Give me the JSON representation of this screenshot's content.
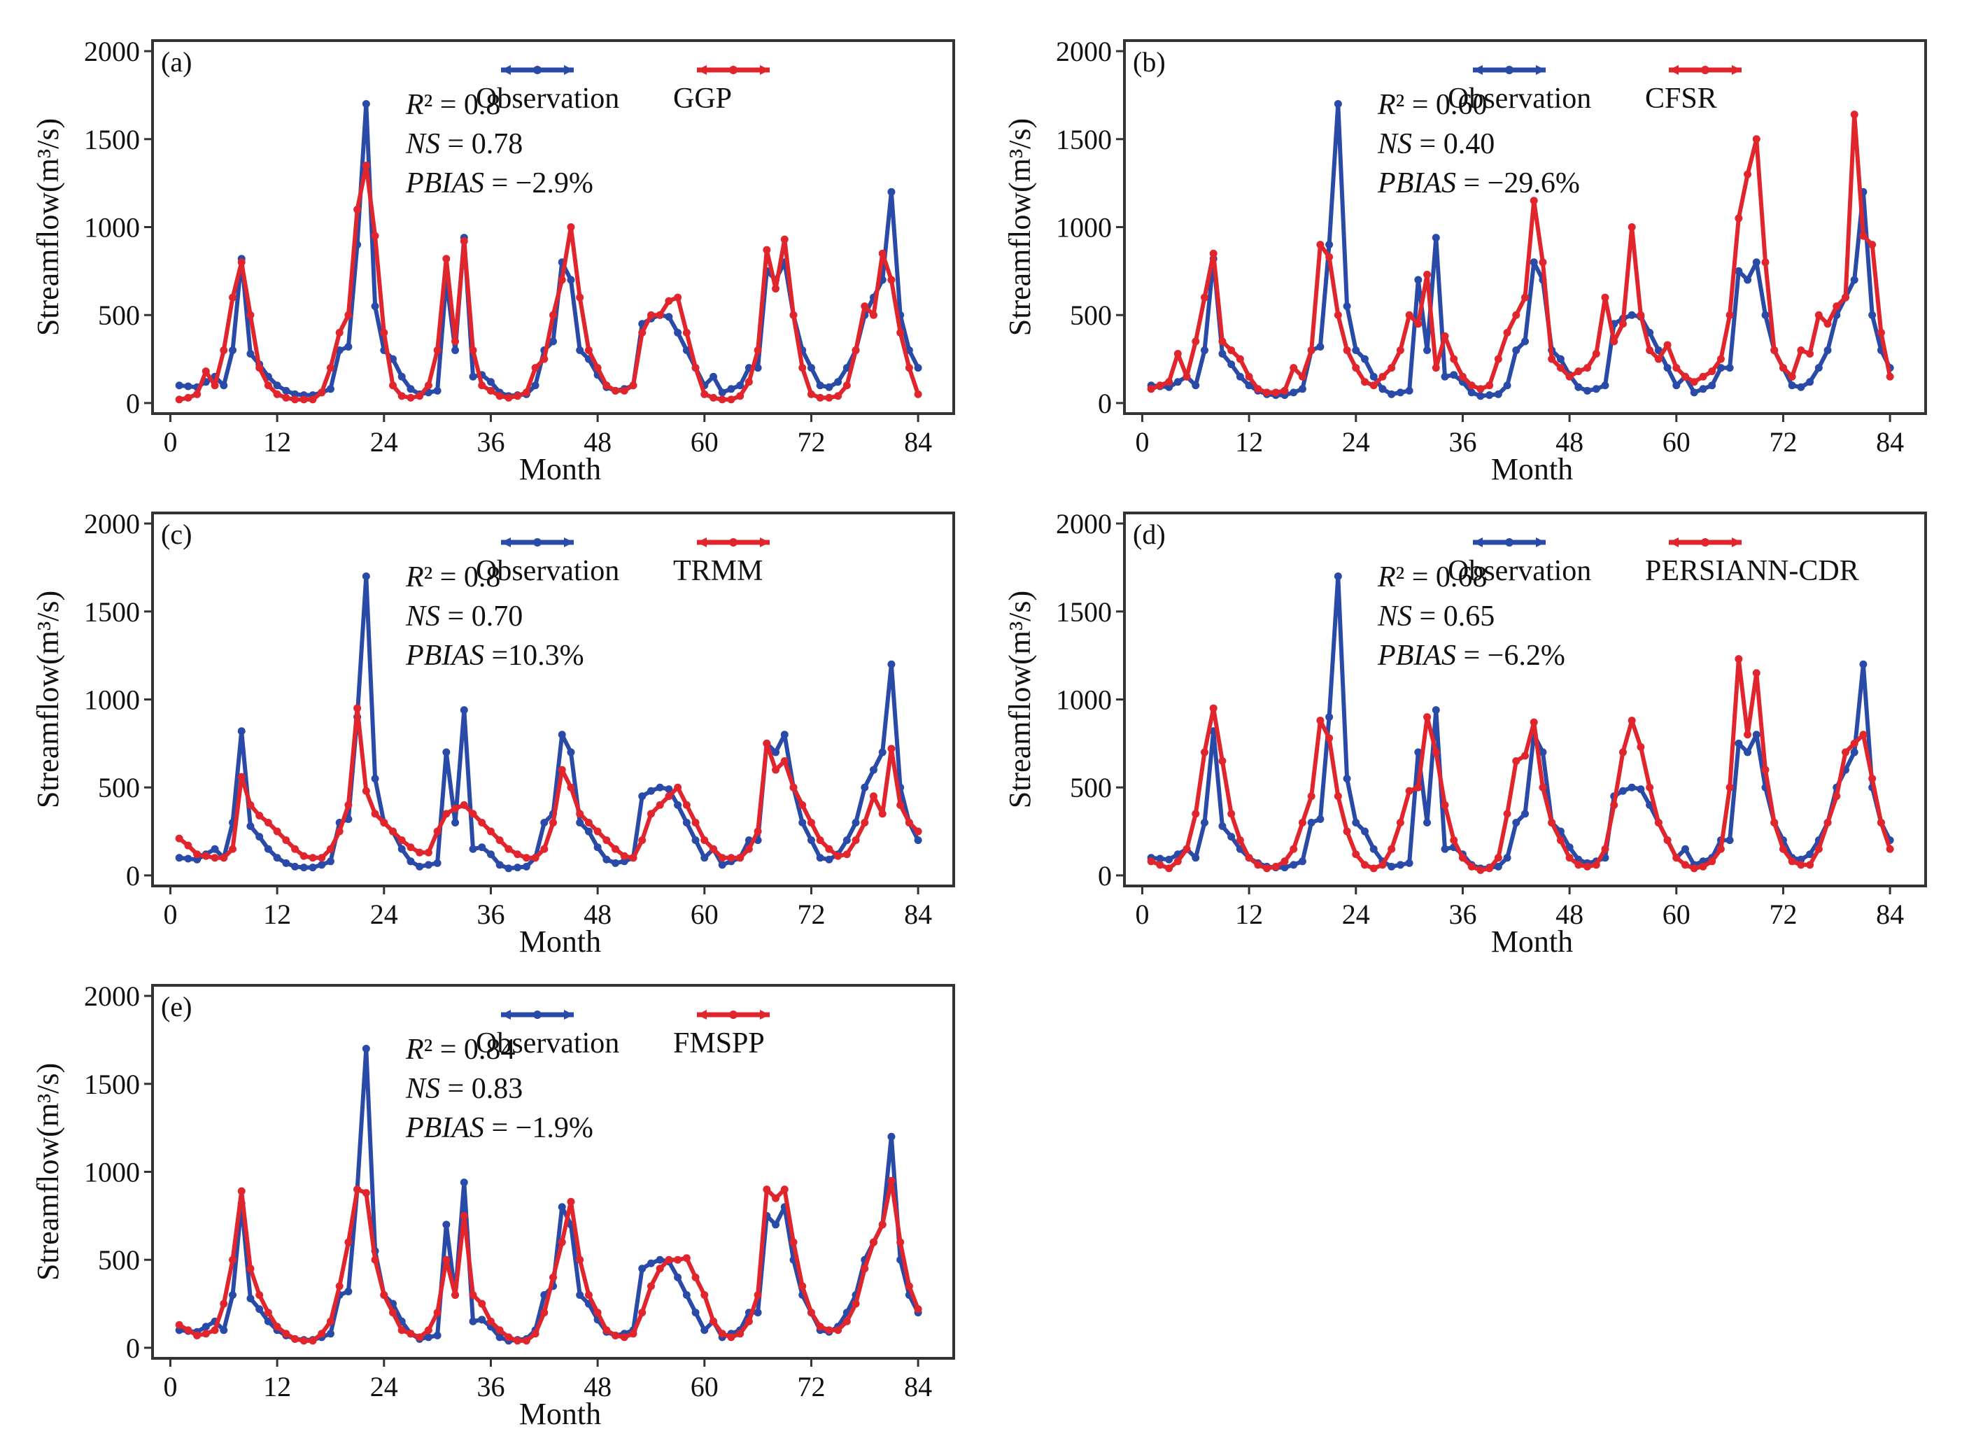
{
  "figure": {
    "x_axis_label": "Month",
    "y_axis_label": "Streamflow(m³/s)",
    "x_ticks": [
      0,
      12,
      24,
      36,
      48,
      60,
      72,
      84
    ],
    "y_ticks": [
      0,
      500,
      1000,
      1500,
      2000
    ],
    "colors": {
      "observation": "#2a4aa8",
      "model": "#e0262c"
    }
  },
  "chart_data": [
    {
      "type": "line",
      "panel_label": "(a)",
      "title": "",
      "xlabel": "Month",
      "ylabel": "Streamflow(m³/s)",
      "xlim": [
        -2,
        88
      ],
      "ylim": [
        -60,
        2060
      ],
      "stats": {
        "r2": "R² = 0.8",
        "ns": "NS = 0.78",
        "pbias": "PBIAS = −2.9%"
      },
      "legend": [
        "Observation",
        "GGP"
      ],
      "series": [
        {
          "name": "Observation",
          "color": "#2a4aa8",
          "values": [
            100,
            95,
            90,
            120,
            150,
            100,
            300,
            820,
            280,
            220,
            150,
            100,
            70,
            50,
            45,
            45,
            60,
            80,
            300,
            320,
            900,
            1700,
            550,
            300,
            250,
            150,
            80,
            50,
            60,
            70,
            700,
            300,
            940,
            150,
            160,
            120,
            60,
            40,
            45,
            50,
            100,
            300,
            350,
            800,
            700,
            300,
            250,
            160,
            90,
            70,
            80,
            100,
            450,
            480,
            500,
            490,
            400,
            300,
            200,
            100,
            150,
            60,
            80,
            100,
            200,
            200,
            750,
            700,
            800,
            500,
            300,
            200,
            100,
            90,
            120,
            200,
            300,
            500,
            600,
            700,
            1200,
            500,
            300,
            200
          ]
        },
        {
          "name": "GGP",
          "color": "#e0262c",
          "values": [
            20,
            30,
            50,
            180,
            100,
            300,
            600,
            800,
            500,
            200,
            100,
            50,
            30,
            20,
            20,
            20,
            60,
            200,
            400,
            500,
            1100,
            1350,
            950,
            400,
            100,
            40,
            30,
            40,
            100,
            300,
            820,
            350,
            920,
            300,
            100,
            70,
            40,
            30,
            40,
            60,
            200,
            250,
            500,
            700,
            1000,
            600,
            300,
            200,
            100,
            70,
            70,
            100,
            400,
            500,
            500,
            580,
            600,
            400,
            200,
            50,
            30,
            20,
            20,
            40,
            120,
            300,
            870,
            650,
            930,
            500,
            200,
            50,
            30,
            30,
            40,
            100,
            300,
            550,
            500,
            850,
            700,
            400,
            200,
            50
          ]
        }
      ]
    },
    {
      "type": "line",
      "panel_label": "(b)",
      "title": "",
      "xlabel": "Month",
      "ylabel": "Streamflow(m³/s)",
      "xlim": [
        -2,
        88
      ],
      "ylim": [
        -60,
        2060
      ],
      "stats": {
        "r2": "R² = 0.60",
        "ns": "NS = 0.40",
        "pbias": "PBIAS = −29.6%"
      },
      "legend": [
        "Observation",
        "CFSR"
      ],
      "series": [
        {
          "name": "Observation",
          "color": "#2a4aa8",
          "values": [
            100,
            95,
            90,
            120,
            150,
            100,
            300,
            820,
            280,
            220,
            150,
            100,
            70,
            50,
            45,
            45,
            60,
            80,
            300,
            320,
            900,
            1700,
            550,
            300,
            250,
            150,
            80,
            50,
            60,
            70,
            700,
            300,
            940,
            150,
            160,
            120,
            60,
            40,
            45,
            50,
            100,
            300,
            350,
            800,
            700,
            300,
            250,
            160,
            90,
            70,
            80,
            100,
            450,
            480,
            500,
            490,
            400,
            300,
            200,
            100,
            150,
            60,
            80,
            100,
            200,
            200,
            750,
            700,
            800,
            500,
            300,
            200,
            100,
            90,
            120,
            200,
            300,
            500,
            600,
            700,
            1200,
            500,
            300,
            200
          ]
        },
        {
          "name": "CFSR",
          "color": "#e0262c",
          "values": [
            80,
            100,
            120,
            280,
            150,
            350,
            600,
            850,
            350,
            300,
            250,
            150,
            80,
            60,
            60,
            70,
            200,
            150,
            300,
            900,
            830,
            500,
            300,
            200,
            120,
            100,
            150,
            200,
            300,
            500,
            450,
            730,
            200,
            380,
            250,
            150,
            100,
            80,
            100,
            250,
            400,
            500,
            600,
            1150,
            800,
            250,
            200,
            150,
            180,
            200,
            280,
            600,
            350,
            450,
            1000,
            500,
            300,
            250,
            330,
            200,
            150,
            120,
            150,
            180,
            250,
            500,
            1050,
            1300,
            1500,
            800,
            300,
            200,
            150,
            300,
            280,
            500,
            450,
            550,
            600,
            1640,
            950,
            900,
            400,
            150
          ]
        }
      ]
    },
    {
      "type": "line",
      "panel_label": "(c)",
      "title": "",
      "xlabel": "Month",
      "ylabel": "Streamflow(m³/s)",
      "xlim": [
        -2,
        88
      ],
      "ylim": [
        -60,
        2060
      ],
      "stats": {
        "r2": "R² = 0.8",
        "ns": "NS = 0.70",
        "pbias": "PBIAS =10.3%"
      },
      "legend": [
        "Observation",
        "TRMM"
      ],
      "series": [
        {
          "name": "Observation",
          "color": "#2a4aa8",
          "values": [
            100,
            95,
            90,
            120,
            150,
            100,
            300,
            820,
            280,
            220,
            150,
            100,
            70,
            50,
            45,
            45,
            60,
            80,
            300,
            320,
            900,
            1700,
            550,
            300,
            250,
            150,
            80,
            50,
            60,
            70,
            700,
            300,
            940,
            150,
            160,
            120,
            60,
            40,
            45,
            50,
            100,
            300,
            350,
            800,
            700,
            300,
            250,
            160,
            90,
            70,
            80,
            100,
            450,
            480,
            500,
            490,
            400,
            300,
            200,
            100,
            150,
            60,
            80,
            100,
            200,
            200,
            750,
            700,
            800,
            500,
            300,
            200,
            100,
            90,
            120,
            200,
            300,
            500,
            600,
            700,
            1200,
            500,
            300,
            200
          ]
        },
        {
          "name": "TRMM",
          "color": "#e0262c",
          "values": [
            210,
            170,
            120,
            110,
            100,
            100,
            150,
            560,
            400,
            340,
            300,
            250,
            200,
            150,
            110,
            100,
            100,
            150,
            250,
            400,
            950,
            480,
            350,
            300,
            250,
            200,
            160,
            130,
            130,
            250,
            350,
            380,
            400,
            350,
            300,
            250,
            200,
            150,
            120,
            100,
            100,
            150,
            300,
            600,
            500,
            350,
            300,
            250,
            200,
            150,
            110,
            100,
            200,
            350,
            400,
            450,
            500,
            400,
            300,
            200,
            150,
            100,
            100,
            100,
            150,
            250,
            750,
            600,
            650,
            500,
            400,
            300,
            200,
            150,
            110,
            120,
            200,
            300,
            450,
            350,
            720,
            400,
            300,
            250
          ]
        }
      ]
    },
    {
      "type": "line",
      "panel_label": "(d)",
      "title": "",
      "xlabel": "Month",
      "ylabel": "Streamflow(m³/s)",
      "xlim": [
        -2,
        88
      ],
      "ylim": [
        -60,
        2060
      ],
      "stats": {
        "r2": "R² = 0.68",
        "ns": "NS = 0.65",
        "pbias": "PBIAS = −6.2%"
      },
      "legend": [
        "Observation",
        "PERSIANN-CDR"
      ],
      "series": [
        {
          "name": "Observation",
          "color": "#2a4aa8",
          "values": [
            100,
            95,
            90,
            120,
            150,
            100,
            300,
            820,
            280,
            220,
            150,
            100,
            70,
            50,
            45,
            45,
            60,
            80,
            300,
            320,
            900,
            1700,
            550,
            300,
            250,
            150,
            80,
            50,
            60,
            70,
            700,
            300,
            940,
            150,
            160,
            120,
            60,
            40,
            45,
            50,
            100,
            300,
            350,
            800,
            700,
            300,
            250,
            160,
            90,
            70,
            80,
            100,
            450,
            480,
            500,
            490,
            400,
            300,
            200,
            100,
            150,
            60,
            80,
            100,
            200,
            200,
            750,
            700,
            800,
            500,
            300,
            200,
            100,
            90,
            120,
            200,
            300,
            500,
            600,
            700,
            1200,
            500,
            300,
            200
          ]
        },
        {
          "name": "PERSIANN-CDR",
          "color": "#e0262c",
          "values": [
            80,
            60,
            40,
            80,
            150,
            350,
            700,
            950,
            650,
            350,
            200,
            100,
            60,
            40,
            50,
            80,
            150,
            300,
            450,
            880,
            780,
            450,
            250,
            120,
            60,
            40,
            60,
            150,
            300,
            480,
            500,
            900,
            700,
            400,
            200,
            100,
            50,
            30,
            40,
            100,
            350,
            650,
            680,
            870,
            500,
            300,
            200,
            100,
            60,
            50,
            60,
            150,
            400,
            700,
            880,
            730,
            500,
            300,
            200,
            100,
            60,
            40,
            50,
            80,
            150,
            500,
            1230,
            800,
            1150,
            600,
            300,
            150,
            80,
            60,
            60,
            150,
            300,
            450,
            700,
            750,
            800,
            550,
            300,
            150
          ]
        }
      ]
    },
    {
      "type": "line",
      "panel_label": "(e)",
      "title": "",
      "xlabel": "Month",
      "ylabel": "Streamflow(m³/s)",
      "xlim": [
        -2,
        88
      ],
      "ylim": [
        -60,
        2060
      ],
      "stats": {
        "r2": "R² = 0.84",
        "ns": "NS = 0.83",
        "pbias": "PBIAS = −1.9%"
      },
      "legend": [
        "Observation",
        "FMSPP"
      ],
      "series": [
        {
          "name": "Observation",
          "color": "#2a4aa8",
          "values": [
            100,
            95,
            90,
            120,
            150,
            100,
            300,
            820,
            280,
            220,
            150,
            100,
            70,
            50,
            45,
            45,
            60,
            80,
            300,
            320,
            900,
            1700,
            550,
            300,
            250,
            150,
            80,
            50,
            60,
            70,
            700,
            300,
            940,
            150,
            160,
            120,
            60,
            40,
            45,
            50,
            100,
            300,
            350,
            800,
            700,
            300,
            250,
            160,
            90,
            70,
            80,
            100,
            450,
            480,
            500,
            490,
            400,
            300,
            200,
            100,
            150,
            60,
            80,
            100,
            200,
            200,
            750,
            700,
            800,
            500,
            300,
            200,
            100,
            90,
            120,
            200,
            300,
            500,
            600,
            700,
            1200,
            500,
            300,
            200
          ]
        },
        {
          "name": "FMSPP",
          "color": "#e0262c",
          "values": [
            130,
            100,
            70,
            80,
            100,
            250,
            500,
            890,
            450,
            300,
            200,
            120,
            80,
            50,
            40,
            40,
            80,
            150,
            350,
            600,
            900,
            880,
            500,
            300,
            200,
            100,
            80,
            60,
            100,
            200,
            500,
            300,
            750,
            300,
            250,
            150,
            100,
            60,
            40,
            40,
            80,
            200,
            400,
            600,
            830,
            500,
            300,
            200,
            100,
            70,
            60,
            80,
            200,
            350,
            450,
            500,
            500,
            510,
            400,
            300,
            150,
            80,
            60,
            80,
            150,
            300,
            900,
            850,
            900,
            600,
            350,
            200,
            120,
            100,
            100,
            150,
            250,
            450,
            600,
            700,
            950,
            600,
            350,
            220
          ]
        }
      ]
    }
  ]
}
